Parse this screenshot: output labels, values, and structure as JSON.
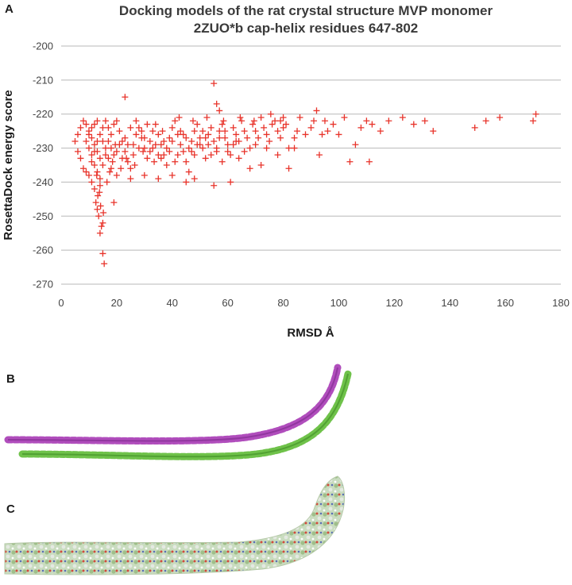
{
  "panels": {
    "a": "A",
    "b": "B",
    "c": "C"
  },
  "colors": {
    "marker": "#e8332a",
    "grid": "#b8b8b8",
    "helix_1": "#b04dbc",
    "helix_2": "#6fc24a"
  },
  "chart_data": {
    "type": "scatter",
    "title_lines": [
      "Docking models of the rat crystal structure MVP monomer",
      "2ZUO*b cap-helix residues 647-802"
    ],
    "xlabel": "RMSD Å",
    "ylabel": "RosettaDock energy score",
    "xlim": [
      0,
      180
    ],
    "ylim": [
      -270,
      -200
    ],
    "xticks": [
      0,
      20,
      40,
      60,
      80,
      100,
      120,
      140,
      160,
      180
    ],
    "yticks": [
      -200,
      -210,
      -220,
      -230,
      -240,
      -250,
      -260,
      -270
    ],
    "grid": "horizontal",
    "marker": "plus",
    "series": [
      {
        "points": [
          [
            55,
            -211
          ],
          [
            23,
            -215
          ],
          [
            56,
            -217
          ],
          [
            57,
            -219
          ],
          [
            15,
            -261
          ],
          [
            15.5,
            -264
          ],
          [
            14,
            -255
          ],
          [
            14.5,
            -253
          ],
          [
            15,
            -252
          ],
          [
            13.5,
            -250
          ],
          [
            13,
            -248
          ],
          [
            12.5,
            -246
          ],
          [
            13.2,
            -244
          ],
          [
            19,
            -246
          ],
          [
            12,
            -242
          ],
          [
            11,
            -240
          ],
          [
            10,
            -238
          ],
          [
            9,
            -237
          ],
          [
            8,
            -236
          ],
          [
            7,
            -233
          ],
          [
            6,
            -231
          ],
          [
            5,
            -228
          ],
          [
            6,
            -226
          ],
          [
            7,
            -224
          ],
          [
            8,
            -222
          ],
          [
            9,
            -223
          ],
          [
            10,
            -225
          ],
          [
            11,
            -227
          ],
          [
            12,
            -229
          ],
          [
            13,
            -231
          ],
          [
            14,
            -233
          ],
          [
            15,
            -235
          ],
          [
            16,
            -232
          ],
          [
            17,
            -228
          ],
          [
            18,
            -226
          ],
          [
            19,
            -223
          ],
          [
            20,
            -222
          ],
          [
            21,
            -225
          ],
          [
            22,
            -228
          ],
          [
            23,
            -231
          ],
          [
            24,
            -234
          ],
          [
            25,
            -236
          ],
          [
            26,
            -229
          ],
          [
            27,
            -226
          ],
          [
            28,
            -224
          ],
          [
            29,
            -227
          ],
          [
            30,
            -230
          ],
          [
            31,
            -233
          ],
          [
            32,
            -228
          ],
          [
            33,
            -225
          ],
          [
            34,
            -223
          ],
          [
            35,
            -226
          ],
          [
            36,
            -229
          ],
          [
            37,
            -232
          ],
          [
            38,
            -235
          ],
          [
            39,
            -227
          ],
          [
            40,
            -224
          ],
          [
            41,
            -222
          ],
          [
            42,
            -226
          ],
          [
            43,
            -229
          ],
          [
            44,
            -231
          ],
          [
            45,
            -234
          ],
          [
            46,
            -237
          ],
          [
            47,
            -228
          ],
          [
            48,
            -225
          ],
          [
            49,
            -223
          ],
          [
            50,
            -227
          ],
          [
            51,
            -230
          ],
          [
            52,
            -233
          ],
          [
            53,
            -226
          ],
          [
            54,
            -224
          ],
          [
            55,
            -228
          ],
          [
            56,
            -231
          ],
          [
            57,
            -225
          ],
          [
            58,
            -223
          ],
          [
            59,
            -227
          ],
          [
            60,
            -229
          ],
          [
            61,
            -232
          ],
          [
            62,
            -224
          ],
          [
            63,
            -226
          ],
          [
            64,
            -228
          ],
          [
            65,
            -222
          ],
          [
            66,
            -225
          ],
          [
            67,
            -227
          ],
          [
            68,
            -230
          ],
          [
            69,
            -223
          ],
          [
            70,
            -225
          ],
          [
            71,
            -227
          ],
          [
            72,
            -221
          ],
          [
            73,
            -224
          ],
          [
            74,
            -226
          ],
          [
            75,
            -228
          ],
          [
            76,
            -223
          ],
          [
            77,
            -222
          ],
          [
            78,
            -225
          ],
          [
            79,
            -227
          ],
          [
            80,
            -224
          ],
          [
            10,
            -230
          ],
          [
            11,
            -232
          ],
          [
            12,
            -235
          ],
          [
            13,
            -237
          ],
          [
            14,
            -239
          ],
          [
            11,
            -234
          ],
          [
            12,
            -231
          ],
          [
            13,
            -228
          ],
          [
            14,
            -226
          ],
          [
            15,
            -228
          ],
          [
            16,
            -230
          ],
          [
            17,
            -233
          ],
          [
            18,
            -236
          ],
          [
            20,
            -231
          ],
          [
            22,
            -233
          ],
          [
            24,
            -229
          ],
          [
            26,
            -232
          ],
          [
            28,
            -230
          ],
          [
            30,
            -227
          ],
          [
            32,
            -231
          ],
          [
            34,
            -229
          ],
          [
            36,
            -233
          ],
          [
            38,
            -230
          ],
          [
            40,
            -228
          ],
          [
            42,
            -232
          ],
          [
            44,
            -226
          ],
          [
            46,
            -230
          ],
          [
            48,
            -232
          ],
          [
            50,
            -229
          ],
          [
            52,
            -227
          ],
          [
            54,
            -232
          ],
          [
            56,
            -230
          ],
          [
            58,
            -234
          ],
          [
            60,
            -231
          ],
          [
            62,
            -229
          ],
          [
            64,
            -233
          ],
          [
            20,
            -238
          ],
          [
            25,
            -239
          ],
          [
            30,
            -238
          ],
          [
            35,
            -239
          ],
          [
            40,
            -238
          ],
          [
            45,
            -240
          ],
          [
            48,
            -239
          ],
          [
            55,
            -241
          ],
          [
            61,
            -240
          ],
          [
            68,
            -236
          ],
          [
            72,
            -235
          ],
          [
            78,
            -232
          ],
          [
            82,
            -236
          ],
          [
            84,
            -230
          ],
          [
            86,
            -221
          ],
          [
            88,
            -226
          ],
          [
            90,
            -224
          ],
          [
            91,
            -222
          ],
          [
            92,
            -219
          ],
          [
            93,
            -232
          ],
          [
            94,
            -226
          ],
          [
            95,
            -222
          ],
          [
            96,
            -225
          ],
          [
            98,
            -223
          ],
          [
            100,
            -226
          ],
          [
            102,
            -221
          ],
          [
            104,
            -234
          ],
          [
            106,
            -229
          ],
          [
            108,
            -224
          ],
          [
            110,
            -222
          ],
          [
            111,
            -234
          ],
          [
            112,
            -223
          ],
          [
            115,
            -225
          ],
          [
            118,
            -222
          ],
          [
            123,
            -221
          ],
          [
            127,
            -223
          ],
          [
            131,
            -222
          ],
          [
            134,
            -225
          ],
          [
            149,
            -224
          ],
          [
            153,
            -222
          ],
          [
            158,
            -221
          ],
          [
            170,
            -222
          ],
          [
            171,
            -220
          ],
          [
            9,
            -228
          ],
          [
            10,
            -226
          ],
          [
            11,
            -224
          ],
          [
            12,
            -223
          ],
          [
            13,
            -222
          ],
          [
            15,
            -224
          ],
          [
            16,
            -222
          ],
          [
            17,
            -224
          ],
          [
            18,
            -230
          ],
          [
            19,
            -232
          ],
          [
            21,
            -229
          ],
          [
            23,
            -227
          ],
          [
            25,
            -224
          ],
          [
            27,
            -222
          ],
          [
            29,
            -225
          ],
          [
            31,
            -223
          ],
          [
            33,
            -230
          ],
          [
            35,
            -232
          ],
          [
            37,
            -228
          ],
          [
            39,
            -231
          ],
          [
            41,
            -234
          ],
          [
            43,
            -225
          ],
          [
            45,
            -227
          ],
          [
            47,
            -231
          ],
          [
            49,
            -229
          ],
          [
            51,
            -225
          ],
          [
            53,
            -229
          ],
          [
            57,
            -227
          ],
          [
            59,
            -225
          ],
          [
            63,
            -228
          ],
          [
            66,
            -231
          ],
          [
            70,
            -229
          ],
          [
            74,
            -230
          ],
          [
            79,
            -222
          ],
          [
            81,
            -223
          ],
          [
            85,
            -225
          ],
          [
            14,
            -241
          ],
          [
            13.8,
            -243
          ],
          [
            14.2,
            -247
          ],
          [
            15.2,
            -249
          ],
          [
            12.8,
            -238
          ],
          [
            16.5,
            -240
          ],
          [
            17.5,
            -237
          ],
          [
            18.5,
            -234
          ],
          [
            19.5,
            -229
          ],
          [
            21.5,
            -236
          ],
          [
            23.5,
            -233
          ],
          [
            26.5,
            -235
          ],
          [
            29.5,
            -231
          ],
          [
            33.5,
            -234
          ],
          [
            36.5,
            -225
          ],
          [
            42.5,
            -221
          ],
          [
            47.5,
            -222
          ],
          [
            52.5,
            -221
          ],
          [
            58.5,
            -222
          ],
          [
            64.5,
            -221
          ],
          [
            69.5,
            -222
          ],
          [
            75.5,
            -220
          ],
          [
            80,
            -221
          ],
          [
            82,
            -230
          ],
          [
            84,
            -227
          ]
        ]
      }
    ]
  }
}
